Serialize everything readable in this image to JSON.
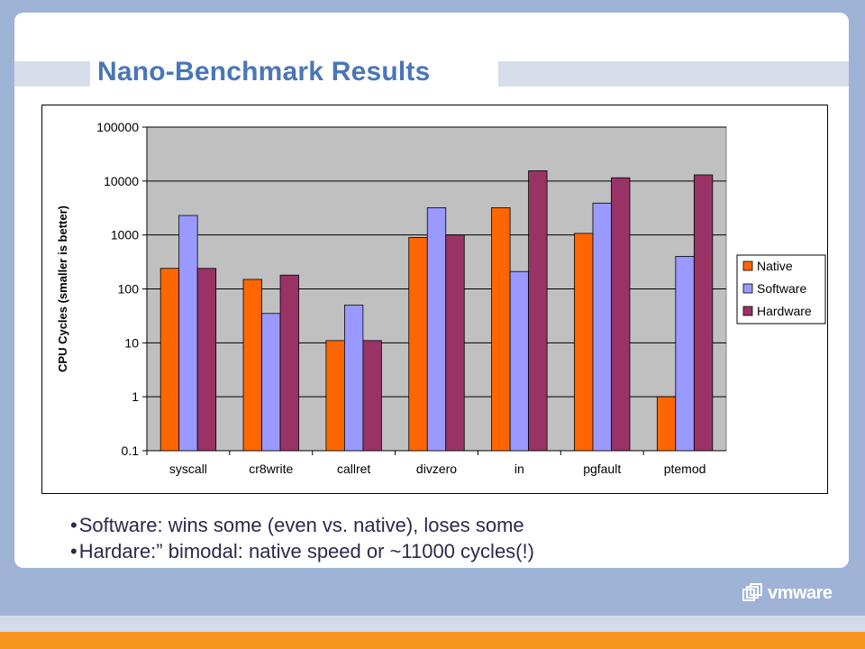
{
  "slide": {
    "title": "Nano-Benchmark Results",
    "bullets": [
      "Software: wins some (even vs. native), loses some",
      "Hardare:” bimodal: native speed or ~11000 cycles(!)"
    ],
    "logo_text": "vmware"
  },
  "colors": {
    "native": "#ff6600",
    "software": "#9999ff",
    "hardware": "#993366",
    "plot_bg": "#c0c0c0"
  },
  "chart_data": {
    "type": "bar",
    "title": "",
    "xlabel": "",
    "ylabel": "CPU Cycles (smaller is better)",
    "yscale": "log",
    "ylim": [
      0.1,
      100000
    ],
    "yticks": [
      "100000",
      "10000",
      "1000",
      "100",
      "10",
      "1",
      "0.1"
    ],
    "ytick_values": [
      100000,
      10000,
      1000,
      100,
      10,
      1,
      0.1
    ],
    "categories": [
      "syscall",
      "cr8write",
      "callret",
      "divzero",
      "in",
      "pgfault",
      "ptemod"
    ],
    "series": [
      {
        "name": "Native",
        "color": "#ff6600",
        "values": [
          240,
          150,
          11,
          900,
          3200,
          1070,
          1
        ]
      },
      {
        "name": "Software",
        "color": "#9999ff",
        "values": [
          2300,
          35,
          50,
          3200,
          210,
          3900,
          400
        ]
      },
      {
        "name": "Hardware",
        "color": "#993366",
        "values": [
          240,
          180,
          11,
          1000,
          15500,
          11500,
          13000
        ]
      }
    ],
    "legend": "right",
    "grid": "horizontal"
  }
}
